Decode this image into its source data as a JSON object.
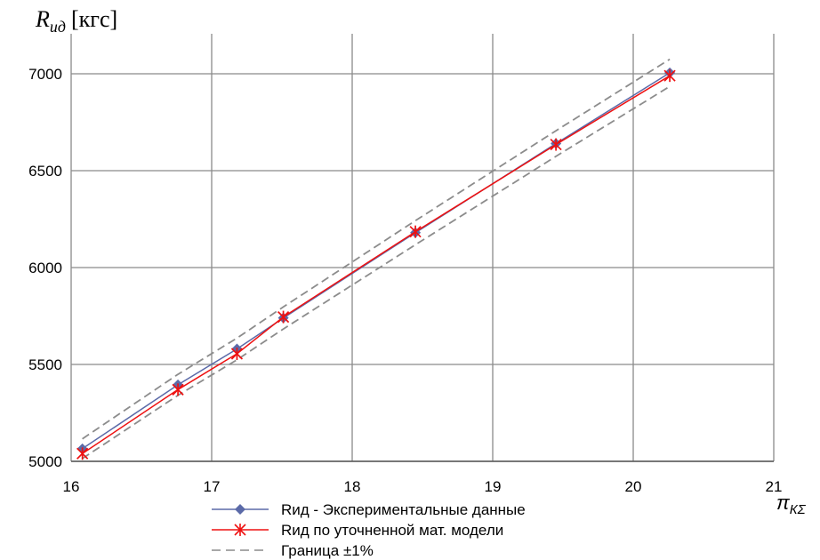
{
  "chart_data": {
    "type": "line",
    "ylabel": "Rид [кгс]",
    "ylabel_main": "R",
    "ylabel_sub": "ид",
    "ylabel_unit": "[кгс]",
    "xlabel": "πКΣ",
    "xlabel_main": "π",
    "xlabel_sub": "КΣ",
    "xlim": [
      16,
      21
    ],
    "ylim": [
      5000,
      7200
    ],
    "xticks": [
      16,
      17,
      18,
      19,
      20,
      21
    ],
    "xtick_labels": [
      "16",
      "17",
      "18",
      "19",
      "20",
      "21"
    ],
    "yticks": [
      5000,
      5500,
      6000,
      6500,
      7000
    ],
    "ytick_labels": [
      "5000",
      "5500",
      "6000",
      "6500",
      "7000"
    ],
    "grid": true,
    "legend_position": "bottom",
    "series": [
      {
        "name": "Rид - Экспериментальные данные",
        "color": "#5b6aa8",
        "marker": "diamond",
        "dash": false,
        "x": [
          16.08,
          16.76,
          17.18,
          17.51,
          18.45,
          19.45,
          20.26
        ],
        "y": [
          5065,
          5395,
          5580,
          5740,
          6180,
          6640,
          7005
        ]
      },
      {
        "name": "Rид по уточненной мат. модели",
        "color": "#ee1111",
        "marker": "asterisk",
        "dash": false,
        "x": [
          16.08,
          16.76,
          17.18,
          17.51,
          18.45,
          19.45,
          20.26
        ],
        "y": [
          5040,
          5370,
          5555,
          5745,
          6185,
          6635,
          6990
        ]
      },
      {
        "name": "Граница ±1%",
        "color": "#8c8c8c",
        "marker": "none",
        "dash": true,
        "x": [
          16.08,
          16.76,
          17.18,
          17.51,
          18.45,
          19.45,
          20.26
        ],
        "y": [
          5116,
          5449,
          5636,
          5797,
          6242,
          6706,
          7075
        ]
      },
      {
        "name": "",
        "color": "#8c8c8c",
        "marker": "none",
        "dash": true,
        "x": [
          16.08,
          16.76,
          17.18,
          17.51,
          18.45,
          19.45,
          20.26
        ],
        "y": [
          5014,
          5341,
          5524,
          5683,
          6118,
          6574,
          6935
        ]
      }
    ]
  },
  "legend": [
    {
      "label": "Rид - Экспериментальные данные",
      "series_index": 0
    },
    {
      "label": "Rид по уточненной мат. модели",
      "series_index": 1
    },
    {
      "label": "Граница ±1%",
      "series_index": 2
    }
  ]
}
